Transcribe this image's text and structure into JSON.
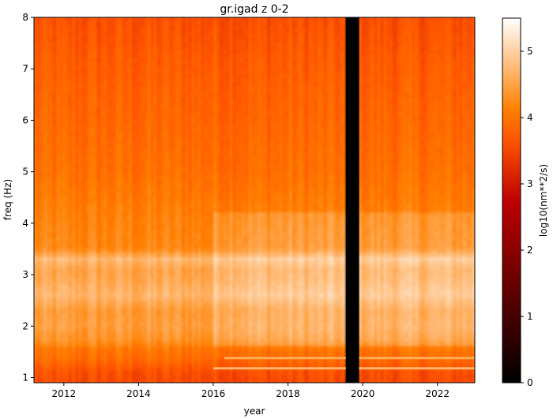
{
  "chart_data": {
    "type": "heatmap",
    "title": "gr.igad z 0-2",
    "xlabel": "year",
    "ylabel": "freq (Hz)",
    "colorbar_label": "log10(nm**2/s)",
    "colormap": "gist_heat",
    "xlim": [
      2011.2,
      2023.0
    ],
    "ylim": [
      0.9,
      8.0
    ],
    "clim": [
      0,
      5.5
    ],
    "x_ticks": [
      2012,
      2014,
      2016,
      2018,
      2020,
      2022
    ],
    "x_tick_labels": [
      "2012",
      "2014",
      "2016",
      "2018",
      "2020",
      "2022"
    ],
    "y_ticks": [
      1,
      2,
      3,
      4,
      5,
      6,
      7,
      8
    ],
    "y_tick_labels": [
      "1",
      "2",
      "3",
      "4",
      "5",
      "6",
      "7",
      "8"
    ],
    "colorbar_ticks": [
      0,
      1,
      2,
      3,
      4,
      5
    ],
    "colorbar_tick_labels": [
      "0",
      "1",
      "2",
      "3",
      "4",
      "5"
    ],
    "data_gap": {
      "x_start": 2019.55,
      "x_end": 2019.9,
      "value": 0
    },
    "freq_profile": [
      {
        "freq": 0.9,
        "value": 3.55
      },
      {
        "freq": 1.1,
        "value": 3.6
      },
      {
        "freq": 1.4,
        "value": 3.95
      },
      {
        "freq": 1.55,
        "value": 4.0
      },
      {
        "freq": 1.7,
        "value": 4.3
      },
      {
        "freq": 2.0,
        "value": 4.45
      },
      {
        "freq": 2.3,
        "value": 4.4
      },
      {
        "freq": 2.6,
        "value": 4.7
      },
      {
        "freq": 2.9,
        "value": 4.55
      },
      {
        "freq": 3.1,
        "value": 4.5
      },
      {
        "freq": 3.3,
        "value": 4.75
      },
      {
        "freq": 3.5,
        "value": 4.2
      },
      {
        "freq": 4.0,
        "value": 4.15
      },
      {
        "freq": 5.0,
        "value": 3.95
      },
      {
        "freq": 6.0,
        "value": 3.85
      },
      {
        "freq": 7.0,
        "value": 3.75
      },
      {
        "freq": 8.0,
        "value": 3.6
      }
    ],
    "time_regimes": [
      {
        "x_start": 2011.2,
        "x_end": 2016.0,
        "offset": 0.0
      },
      {
        "x_start": 2016.0,
        "x_end": 2023.0,
        "offset": 0.25
      }
    ],
    "bright_lines": [
      {
        "freq": 1.18,
        "x_start": 2016.0,
        "x_end": 2023.0,
        "value": 4.7
      },
      {
        "freq": 1.38,
        "x_start": 2016.3,
        "x_end": 2023.0,
        "value": 4.6
      }
    ]
  }
}
